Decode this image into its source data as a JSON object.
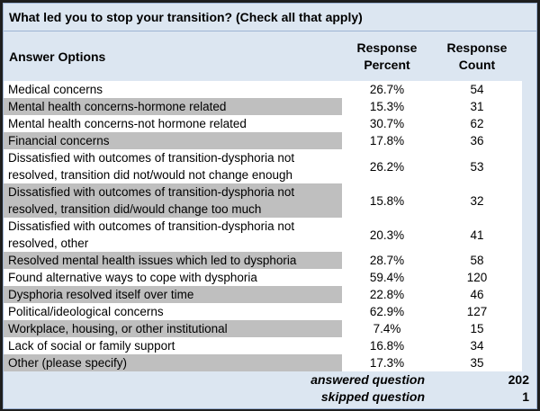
{
  "title": "What led you to stop your transition? (Check all that apply)",
  "headers": {
    "option": "Answer Options",
    "percent_line1": "Response",
    "percent_line2": "Percent",
    "count_line1": "Response",
    "count_line2": "Count"
  },
  "rows": [
    {
      "label": "Medical concerns",
      "percent": "26.7%",
      "count": "54"
    },
    {
      "label": "Mental health concerns-hormone related",
      "percent": "15.3%",
      "count": "31"
    },
    {
      "label": "Mental health concerns-not hormone related",
      "percent": "30.7%",
      "count": "62"
    },
    {
      "label": "Financial concerns",
      "percent": "17.8%",
      "count": "36"
    },
    {
      "label_line1": "Dissatisfied with outcomes of transition-dysphoria not",
      "label_line2": "resolved, transition did not/would not change enough",
      "percent": "26.2%",
      "count": "53"
    },
    {
      "label_line1": "Dissatisfied with outcomes of transition-dysphoria not",
      "label_line2": "resolved, transition did/would change too much",
      "percent": "15.8%",
      "count": "32"
    },
    {
      "label_line1": "Dissatisfied with outcomes of transition-dysphoria not",
      "label_line2": "resolved, other",
      "percent": "20.3%",
      "count": "41"
    },
    {
      "label": "Resolved mental health issues which led to dysphoria",
      "percent": "28.7%",
      "count": "58"
    },
    {
      "label": "Found alternative ways to cope with dysphoria",
      "percent": "59.4%",
      "count": "120"
    },
    {
      "label": "Dysphoria resolved itself over time",
      "percent": "22.8%",
      "count": "46"
    },
    {
      "label": "Political/ideological concerns",
      "percent": "62.9%",
      "count": "127"
    },
    {
      "label": "Workplace, housing, or other institutional",
      "percent": "7.4%",
      "count": "15"
    },
    {
      "label": "Lack of social or family support",
      "percent": "16.8%",
      "count": "34"
    },
    {
      "label": "Other (please specify)",
      "percent": "17.3%",
      "count": "35"
    }
  ],
  "footer": {
    "answered_label": "answered question",
    "answered_value": "202",
    "skipped_label": "skipped question",
    "skipped_value": "1"
  }
}
